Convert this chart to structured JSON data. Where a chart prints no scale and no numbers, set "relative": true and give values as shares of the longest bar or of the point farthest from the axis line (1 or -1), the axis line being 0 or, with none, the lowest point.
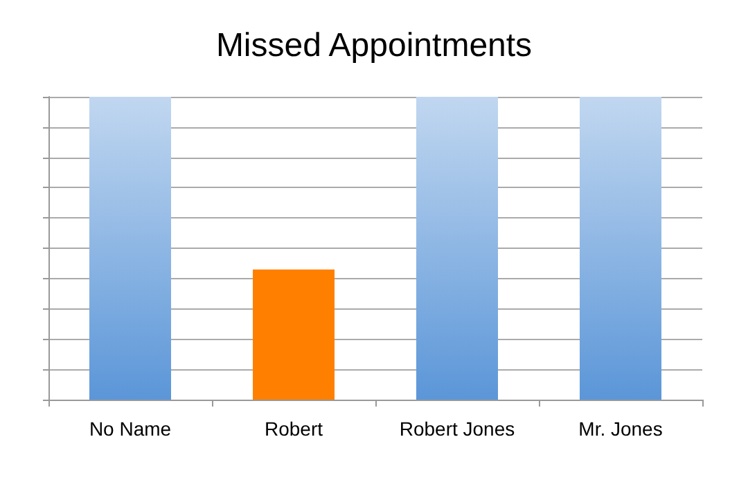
{
  "chart_data": {
    "type": "bar",
    "title": "Missed Appointments",
    "categories": [
      "No Name",
      "Robert",
      "Robert Jones",
      "Mr. Jones"
    ],
    "values": [
      1,
      0.43,
      1,
      1
    ],
    "colors": [
      "#5b96d8",
      "#ff8000",
      "#5b96d8",
      "#5b96d8"
    ],
    "relative": true,
    "grid": "y"
  }
}
